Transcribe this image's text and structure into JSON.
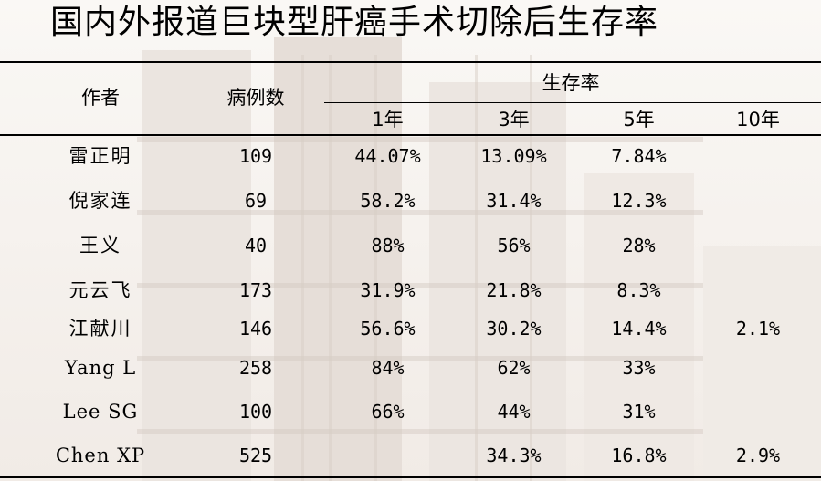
{
  "title": "国内外报道巨块型肝癌手术切除后生存率",
  "headers": {
    "author": "作者",
    "cases": "病例数",
    "survival": "生存率",
    "y1": "1年",
    "y3": "3年",
    "y5": "5年",
    "y10": "10年"
  },
  "rows": [
    {
      "author": "雷正明",
      "cases": "109",
      "y1": "44.07%",
      "y3": "13.09%",
      "y5": "7.84%",
      "y10": ""
    },
    {
      "author": "倪家连",
      "cases": "69",
      "y1": "58.2%",
      "y3": "31.4%",
      "y5": "12.3%",
      "y10": ""
    },
    {
      "author": "王义",
      "cases": "40",
      "y1": "88%",
      "y3": "56%",
      "y5": "28%",
      "y10": ""
    },
    {
      "author": "元云飞",
      "cases": "173",
      "y1": "31.9%",
      "y3": "21.8%",
      "y5": "8.3%",
      "y10": ""
    },
    {
      "author": "江献川",
      "cases": "146",
      "y1": "56.6%",
      "y3": "30.2%",
      "y5": "14.4%",
      "y10": "2.1%"
    },
    {
      "author": "Yang L",
      "cases": "258",
      "y1": "84%",
      "y3": "62%",
      "y5": "33%",
      "y10": ""
    },
    {
      "author": "Lee SG",
      "cases": "100",
      "y1": "66%",
      "y3": "44%",
      "y5": "31%",
      "y10": ""
    },
    {
      "author": "Chen XP",
      "cases": "525",
      "y1": "",
      "y3": "34.3%",
      "y5": "16.8%",
      "y10": "2.9%"
    }
  ]
}
